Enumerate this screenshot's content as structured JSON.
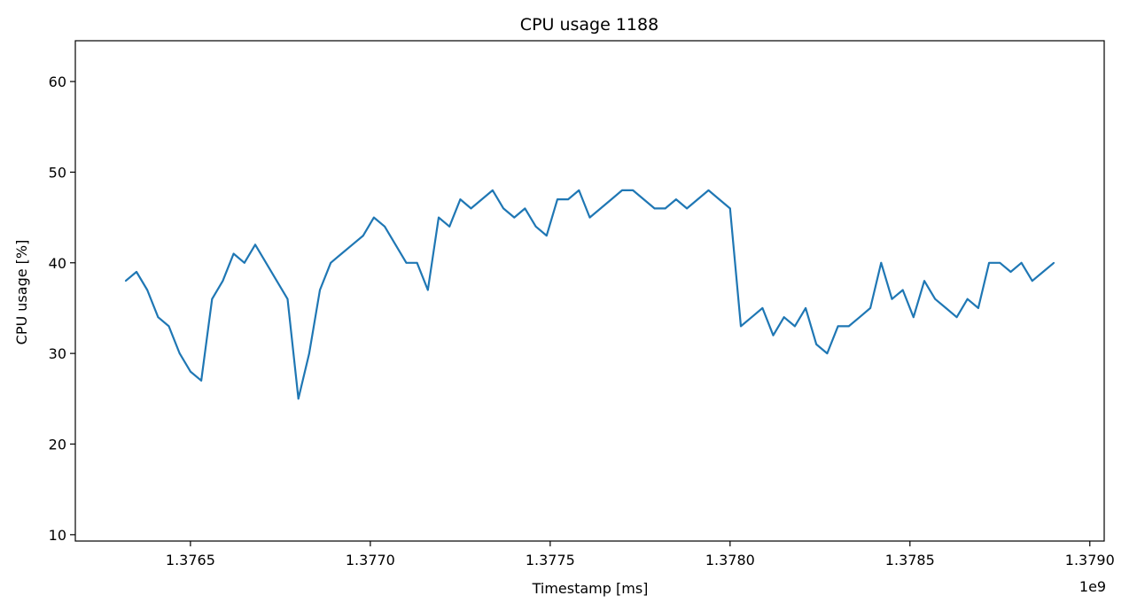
{
  "chart_data": {
    "type": "line",
    "title": "CPU usage 1188",
    "xlabel": "Timestamp [ms]",
    "ylabel": "CPU usage [%]",
    "x_offset_label": "1e9",
    "xlim": [
      1.37618,
      1.37904
    ],
    "ylim": [
      9.3,
      64.5
    ],
    "x_ticks": [
      1.3765,
      1.377,
      1.3775,
      1.378,
      1.3785,
      1.379
    ],
    "x_tick_labels": [
      "1.3765",
      "1.3770",
      "1.3775",
      "1.3780",
      "1.3785",
      "1.3790"
    ],
    "y_ticks": [
      10,
      20,
      30,
      40,
      50,
      60
    ],
    "y_tick_labels": [
      "10",
      "20",
      "30",
      "40",
      "50",
      "60"
    ],
    "grid": false,
    "line_color": "#1f77b4",
    "series": [
      {
        "x": [
          1.37632,
          1.37635,
          1.37638,
          1.37641,
          1.37644,
          1.37647,
          1.3765,
          1.37653,
          1.37656,
          1.37659,
          1.37662,
          1.37665,
          1.37668,
          1.37671,
          1.37674,
          1.37677,
          1.3768,
          1.37683,
          1.37686,
          1.37689,
          1.37692,
          1.37695,
          1.37698,
          1.37701,
          1.37704,
          1.37707,
          1.3771,
          1.37713,
          1.37716,
          1.37719,
          1.37722,
          1.37725,
          1.37728,
          1.37731,
          1.37734,
          1.37737,
          1.3774,
          1.37743,
          1.37746,
          1.37749,
          1.37752,
          1.37755,
          1.37758,
          1.37761,
          1.37764,
          1.37767,
          1.3777,
          1.37773,
          1.37776,
          1.37779,
          1.37782,
          1.37785,
          1.37788,
          1.37791,
          1.37794,
          1.37797,
          1.378,
          1.37803,
          1.37806,
          1.37809,
          1.37812,
          1.37815,
          1.37818,
          1.37821,
          1.37824,
          1.37827,
          1.3783,
          1.37833,
          1.37836,
          1.37839,
          1.37842,
          1.37845,
          1.37848,
          1.37851,
          1.37854,
          1.37857,
          1.3786,
          1.37863,
          1.37866,
          1.37869,
          1.37872,
          1.37875,
          1.37878,
          1.37881,
          1.37884,
          1.37887,
          1.3789
        ],
        "y": [
          38,
          39,
          37,
          34,
          33,
          30,
          28,
          27,
          36,
          38,
          41,
          40,
          42,
          40,
          38,
          36,
          25,
          30,
          37,
          40,
          41,
          42,
          43,
          45,
          44,
          42,
          40,
          40,
          37,
          45,
          44,
          47,
          46,
          47,
          48,
          46,
          45,
          46,
          44,
          43,
          47,
          47,
          48,
          45,
          46,
          47,
          48,
          48,
          47,
          46,
          46,
          47,
          46,
          47,
          48,
          47,
          46,
          33,
          34,
          35,
          32,
          34,
          33,
          35,
          31,
          30,
          33,
          33,
          34,
          35,
          40,
          36,
          37,
          34,
          38,
          36,
          35,
          34,
          36,
          35,
          40,
          40,
          39,
          40,
          38,
          39,
          40
        ]
      }
    ]
  }
}
